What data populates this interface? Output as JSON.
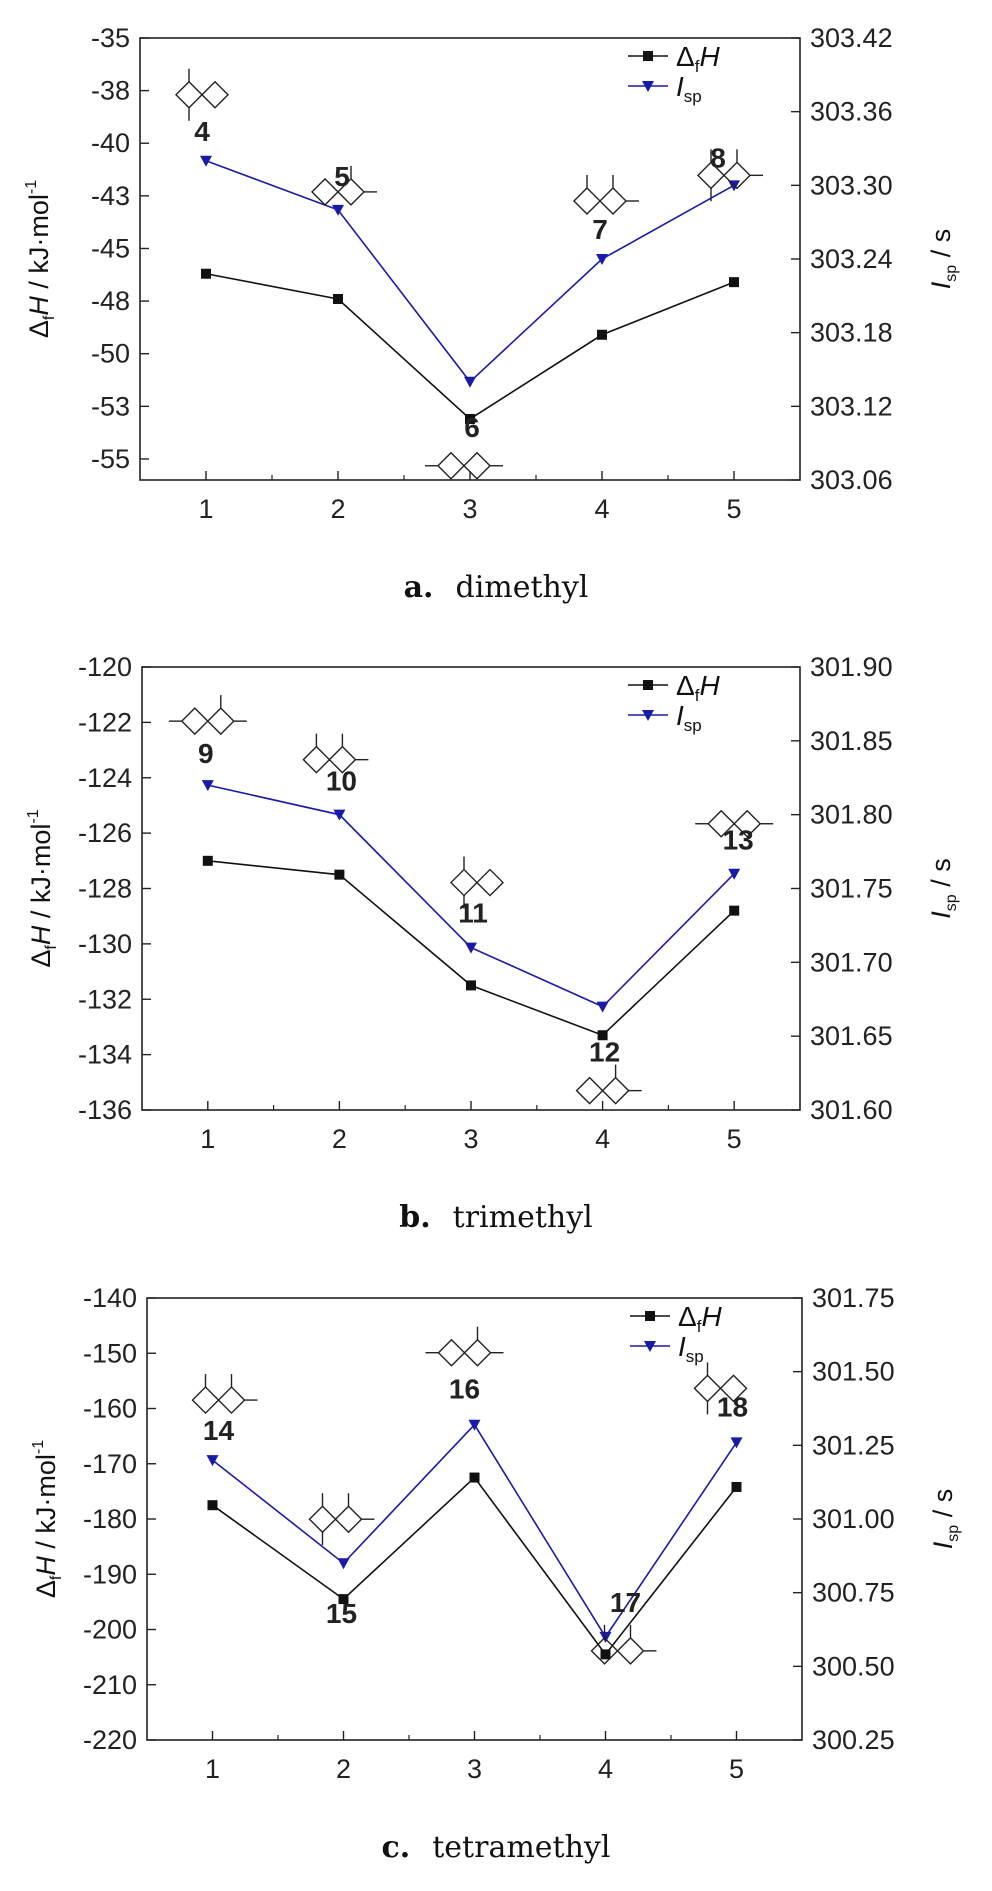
{
  "chart_data": [
    {
      "type": "line",
      "caption_letter": "a.",
      "caption_text": "dimethyl",
      "x": [
        1,
        2,
        3,
        4,
        5
      ],
      "xticks": [
        "1",
        "2",
        "3",
        "4",
        "5"
      ],
      "xlim": [
        0.5,
        5.5
      ],
      "ylabel_left": {
        "pre": "Δ",
        "sub": "f",
        "main": "H",
        "post": " / kJ·mol",
        "sup": "-1"
      },
      "ylabel_right": {
        "main": "I",
        "sub": "sp",
        "post": " / s"
      },
      "ylim_left": [
        -56,
        -35
      ],
      "yticks_left": [
        "-35",
        "-38",
        "-40",
        "-43",
        "-45",
        "-48",
        "-50",
        "-53",
        "-55"
      ],
      "ytick_values_left": [
        -35,
        -37.5,
        -40,
        -42.5,
        -45,
        -47.5,
        -50,
        -52.5,
        -55
      ],
      "ylim_right": [
        303.06,
        303.42
      ],
      "yticks_right": [
        "303.42",
        "303.36",
        "303.30",
        "303.24",
        "303.18",
        "303.12",
        "303.06"
      ],
      "ytick_values_right": [
        303.42,
        303.36,
        303.3,
        303.24,
        303.18,
        303.12,
        303.06
      ],
      "series": [
        {
          "name": "ΔfH",
          "legend_main": "Δ",
          "legend_sub": "f",
          "legend_tail": "H",
          "axis": "left",
          "color": "#111111",
          "marker": "square",
          "values": [
            -46.2,
            -47.4,
            -53.1,
            -49.1,
            -46.6
          ]
        },
        {
          "name": "Isp",
          "legend_main": "I",
          "legend_sub": "sp",
          "legend_tail": "",
          "axis": "right",
          "color": "#1a1aaa",
          "marker": "triangle-down",
          "values": [
            303.32,
            303.28,
            303.14,
            303.24,
            303.3
          ]
        }
      ],
      "point_labels": [
        "4",
        "5",
        "6",
        "7",
        "8"
      ]
    },
    {
      "type": "line",
      "caption_letter": "b.",
      "caption_text": "trimethyl",
      "x": [
        1,
        2,
        3,
        4,
        5
      ],
      "xticks": [
        "1",
        "2",
        "3",
        "4",
        "5"
      ],
      "xlim": [
        0.5,
        5.5
      ],
      "ylabel_left": {
        "pre": "Δ",
        "sub": "f",
        "main": "H",
        "post": " / kJ·mol",
        "sup": "-1"
      },
      "ylabel_right": {
        "main": "I",
        "sub": "sp",
        "post": " / s"
      },
      "ylim_left": [
        -136,
        -120
      ],
      "yticks_left": [
        "-120",
        "-122",
        "-124",
        "-126",
        "-128",
        "-130",
        "-132",
        "-134",
        "-136"
      ],
      "ytick_values_left": [
        -120,
        -122,
        -124,
        -126,
        -128,
        -130,
        -132,
        -134,
        -136
      ],
      "ylim_right": [
        301.6,
        301.9
      ],
      "yticks_right": [
        "301.90",
        "301.85",
        "301.80",
        "301.75",
        "301.70",
        "301.65",
        "301.60"
      ],
      "ytick_values_right": [
        301.9,
        301.85,
        301.8,
        301.75,
        301.7,
        301.65,
        301.6
      ],
      "series": [
        {
          "name": "ΔfH",
          "legend_main": "Δ",
          "legend_sub": "f",
          "legend_tail": "H",
          "axis": "left",
          "color": "#111111",
          "marker": "square",
          "values": [
            -127.0,
            -127.5,
            -131.5,
            -133.3,
            -128.8
          ]
        },
        {
          "name": "Isp",
          "legend_main": "I",
          "legend_sub": "sp",
          "legend_tail": "",
          "axis": "right",
          "color": "#1a1aaa",
          "marker": "triangle-down",
          "values": [
            301.82,
            301.8,
            301.71,
            301.67,
            301.76
          ]
        }
      ],
      "point_labels": [
        "9",
        "10",
        "11",
        "12",
        "13"
      ]
    },
    {
      "type": "line",
      "caption_letter": "c.",
      "caption_text": "tetramethyl",
      "x": [
        1,
        2,
        3,
        4,
        5
      ],
      "xticks": [
        "1",
        "2",
        "3",
        "4",
        "5"
      ],
      "xlim": [
        0.5,
        5.5
      ],
      "ylabel_left": {
        "pre": "Δ",
        "sub": "f",
        "main": "H",
        "post": " / kJ·mol",
        "sup": "-1"
      },
      "ylabel_right": {
        "main": "I",
        "sub": "sp",
        "post": " / s"
      },
      "ylim_left": [
        -220,
        -140
      ],
      "yticks_left": [
        "-140",
        "-150",
        "-160",
        "-170",
        "-180",
        "-190",
        "-200",
        "-210",
        "-220"
      ],
      "ytick_values_left": [
        -140,
        -150,
        -160,
        -170,
        -180,
        -190,
        -200,
        -210,
        -220
      ],
      "ylim_right": [
        300.25,
        301.75
      ],
      "yticks_right": [
        "301.75",
        "301.50",
        "301.25",
        "301.00",
        "300.75",
        "300.50",
        "300.25"
      ],
      "ytick_values_right": [
        301.75,
        301.5,
        301.25,
        301.0,
        300.75,
        300.5,
        300.25
      ],
      "series": [
        {
          "name": "ΔfH",
          "legend_main": "Δ",
          "legend_sub": "f",
          "legend_tail": "H",
          "axis": "left",
          "color": "#111111",
          "marker": "square",
          "values": [
            -177.5,
            -194.5,
            -172.5,
            -204.5,
            -174.2
          ]
        },
        {
          "name": "Isp",
          "legend_main": "I",
          "legend_sub": "sp",
          "legend_tail": "",
          "axis": "right",
          "color": "#1a1aaa",
          "marker": "triangle-down",
          "values": [
            301.2,
            300.85,
            301.32,
            300.6,
            301.26
          ]
        }
      ],
      "point_labels": [
        "14",
        "15",
        "16",
        "17",
        "18"
      ]
    }
  ]
}
